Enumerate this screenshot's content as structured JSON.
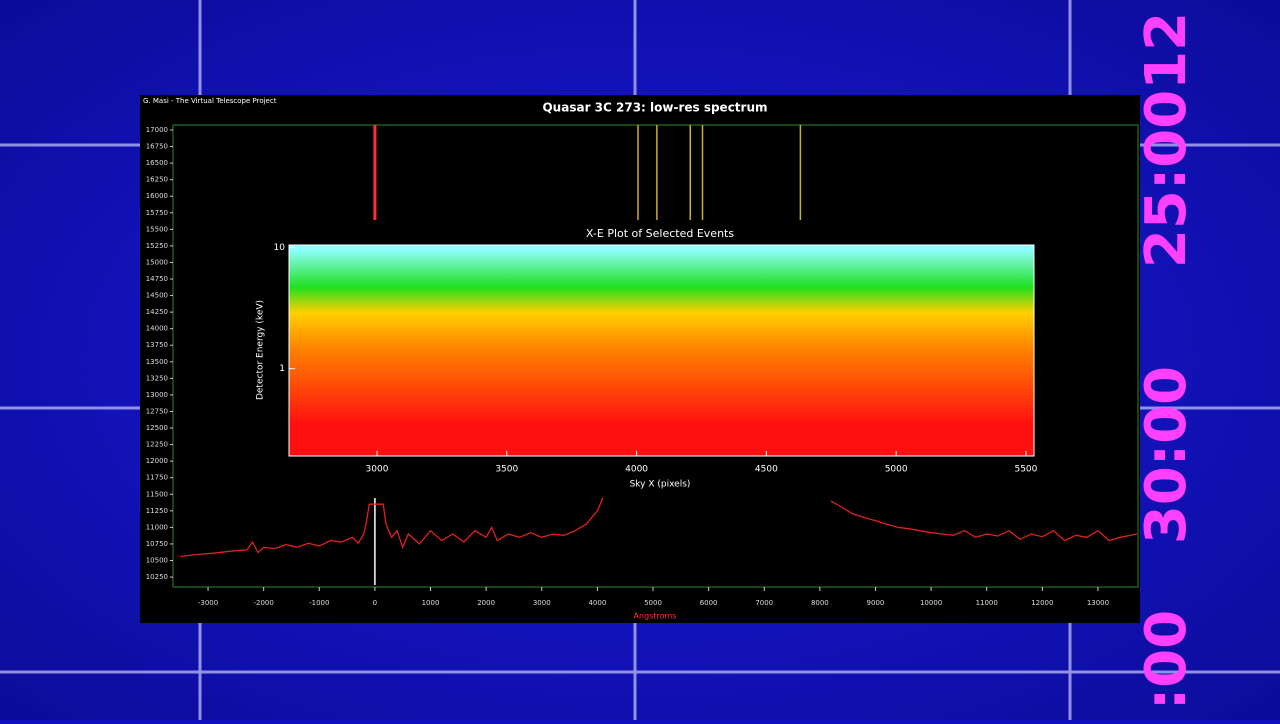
{
  "overlay_texts": [
    "25:0012",
    "30:00",
    ":00"
  ],
  "credit": "G. Masi - The Virtual Telescope Project",
  "chart_data": [
    {
      "type": "line",
      "title": "Quasar 3C 273: low-res spectrum",
      "x_label": "Angstroms",
      "xlim": [
        -3630,
        13720
      ],
      "ylim": [
        10100,
        17075
      ],
      "xticks": [
        -3000,
        -2000,
        -1000,
        0,
        1000,
        2000,
        3000,
        4000,
        5000,
        6000,
        7000,
        8000,
        9000,
        10000,
        11000,
        12000,
        13000
      ],
      "yticks": [
        10250,
        10500,
        10750,
        11000,
        11250,
        11500,
        11750,
        12000,
        12250,
        12500,
        12750,
        13000,
        13250,
        13500,
        13750,
        14000,
        14250,
        14500,
        14750,
        15000,
        15250,
        15500,
        15750,
        16000,
        16250,
        16500,
        16750,
        17000
      ],
      "x": [
        -3500,
        -3200,
        -2900,
        -2600,
        -2300,
        -2200,
        -2100,
        -2000,
        -1800,
        -1600,
        -1400,
        -1200,
        -1000,
        -800,
        -600,
        -400,
        -300,
        -200,
        -150,
        -100,
        150,
        200,
        300,
        400,
        500,
        600,
        800,
        1000,
        1200,
        1400,
        1600,
        1800,
        2000,
        2100,
        2200,
        2400,
        2600,
        2800,
        3000,
        3200,
        3400,
        3600,
        3800,
        4000,
        4100,
        6000,
        8200,
        8400,
        8600,
        8800,
        9000,
        9200,
        9400,
        9600,
        9800,
        10000,
        10200,
        10400,
        10600,
        10800,
        11000,
        11200,
        11400,
        11600,
        11800,
        12000,
        12200,
        12400,
        12600,
        12800,
        13000,
        13200,
        13400,
        13700
      ],
      "series": [
        {
          "color": "#e02020",
          "values": [
            10560,
            10590,
            10610,
            10640,
            10660,
            10780,
            10620,
            10700,
            10680,
            10740,
            10700,
            10760,
            10720,
            10800,
            10780,
            10850,
            10760,
            10900,
            11100,
            11350,
            11350,
            11050,
            10850,
            10950,
            10700,
            10900,
            10750,
            10950,
            10800,
            10900,
            10780,
            10950,
            10850,
            11000,
            10800,
            10900,
            10850,
            10920,
            10850,
            10900,
            10880,
            10950,
            11050,
            11250,
            11450,
            null,
            11400,
            11300,
            11200,
            11150,
            11100,
            11050,
            11000,
            10980,
            10950,
            10920,
            10900,
            10880,
            10950,
            10850,
            10900,
            10870,
            10950,
            10820,
            10900,
            10860,
            10950,
            10800,
            10880,
            10850,
            10950,
            10800,
            10850,
            10900
          ]
        }
      ],
      "markers": [
        {
          "x": 0,
          "color": "#ff3030",
          "band": "top"
        },
        {
          "x": 4730,
          "color": "#c8b030",
          "band": "top"
        },
        {
          "x": 5070,
          "color": "#c8b030",
          "band": "top"
        },
        {
          "x": 5670,
          "color": "#c8b030",
          "band": "top"
        },
        {
          "x": 5890,
          "color": "#c8b030",
          "band": "top"
        },
        {
          "x": 7650,
          "color": "#c8b030",
          "band": "top"
        },
        {
          "x": 0,
          "color": "#ffffff",
          "band": "bottom"
        }
      ]
    },
    {
      "type": "scatter",
      "title": "X-E Plot of Selected Events",
      "x_label": "Sky X (pixels)",
      "y_label": "Detector Energy (keV)",
      "xlim": [
        2661,
        5531
      ],
      "ylim": [
        0.19,
        10.5
      ],
      "log_y": true,
      "xticks": [
        3000,
        3500,
        4000,
        4500,
        5000,
        5500
      ],
      "yticks": [
        1,
        10
      ],
      "colors": [
        "#ff1010",
        "#ff8000",
        "#ffd000",
        "#20e020",
        "#90ffff"
      ]
    }
  ]
}
